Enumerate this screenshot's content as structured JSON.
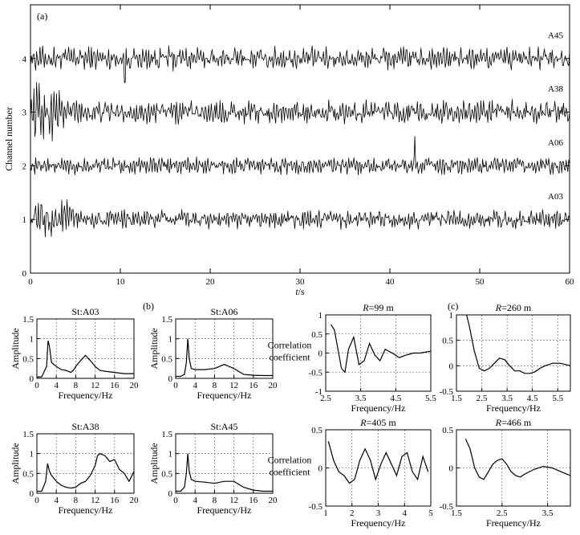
{
  "chart_data": [
    {
      "type": "line",
      "panel_label": "(a)",
      "xlabel_italic": "t",
      "xlabel_rest": "/s",
      "ylabel": "Channel number",
      "xlim": [
        0,
        60
      ],
      "ylim": [
        0,
        5
      ],
      "xticks": [
        "0",
        "10",
        "20",
        "30",
        "40",
        "50",
        "60"
      ],
      "yticks": [
        "0",
        "1",
        "2",
        "3",
        "4"
      ],
      "grid": false,
      "series": [
        {
          "name": "A45",
          "baseline": 4,
          "amplitude": 0.28,
          "burst_time_s": 10,
          "spike_time_s": 10.5,
          "spike_value": -0.45
        },
        {
          "name": "A38",
          "baseline": 3,
          "amplitude": 0.28,
          "burst_time_s": 1.5,
          "burst_value": 0.5
        },
        {
          "name": "A06",
          "baseline": 2,
          "amplitude": 0.2,
          "spike_time_s": 42.8,
          "spike_value": 0.55
        },
        {
          "name": "A03",
          "baseline": 1,
          "amplitude": 0.22,
          "burst_time_s": 3,
          "burst_value": 0.4
        }
      ]
    },
    {
      "type": "line",
      "title": "St:A03",
      "xlabel": "Frequency/Hz",
      "ylabel": "Amplitude",
      "xlim": [
        0,
        20
      ],
      "ylim": [
        0,
        1.5
      ],
      "xticks": [
        "0",
        "4",
        "8",
        "12",
        "16",
        "20"
      ],
      "yticks": [
        "0",
        "0.5",
        "1",
        "1.5"
      ],
      "grid": true,
      "x": [
        0,
        1,
        2,
        2.3,
        2.6,
        3,
        3.5,
        4,
        5,
        6,
        7,
        7.5,
        8,
        9,
        10,
        11,
        12,
        13,
        14,
        16,
        18,
        20
      ],
      "y": [
        0.03,
        0.04,
        0.3,
        0.95,
        0.8,
        0.4,
        0.35,
        0.3,
        0.22,
        0.2,
        0.15,
        0.2,
        0.3,
        0.45,
        0.58,
        0.45,
        0.3,
        0.2,
        0.18,
        0.15,
        0.12,
        0.12
      ]
    },
    {
      "type": "line",
      "title": "St:A06",
      "xlabel": "Frequency/Hz",
      "ylabel": "Amplitude",
      "xlim": [
        0,
        20
      ],
      "ylim": [
        0,
        1.5
      ],
      "xticks": [
        "0",
        "4",
        "8",
        "12",
        "16",
        "20"
      ],
      "yticks": [
        "0",
        "0.5",
        "1",
        "1.5"
      ],
      "grid": true,
      "x": [
        0,
        1,
        1.8,
        2.2,
        2.5,
        2.8,
        3.2,
        4,
        6,
        8,
        9,
        10,
        11,
        12,
        14,
        16,
        18,
        20
      ],
      "y": [
        0.05,
        0.05,
        0.1,
        0.4,
        1.0,
        0.5,
        0.25,
        0.22,
        0.22,
        0.25,
        0.3,
        0.35,
        0.3,
        0.25,
        0.1,
        0.08,
        0.07,
        0.07
      ]
    },
    {
      "type": "line",
      "title": "St:A38",
      "xlabel": "Frequency/Hz",
      "ylabel": "Amplitude",
      "xlim": [
        0,
        20
      ],
      "ylim": [
        0,
        1.5
      ],
      "xticks": [
        "0",
        "4",
        "8",
        "12",
        "16",
        "20"
      ],
      "yticks": [
        "0",
        "0.5",
        "1",
        "1.5"
      ],
      "grid": true,
      "x": [
        0,
        1,
        1.8,
        2.2,
        2.6,
        3,
        4,
        5,
        6,
        7,
        8,
        9,
        10,
        11,
        12,
        12.5,
        13,
        14,
        15,
        16,
        17,
        18,
        19,
        20
      ],
      "y": [
        0.05,
        0.05,
        0.3,
        0.75,
        0.55,
        0.45,
        0.3,
        0.2,
        0.15,
        0.13,
        0.15,
        0.25,
        0.3,
        0.45,
        0.7,
        0.95,
        1.0,
        0.95,
        0.8,
        0.85,
        0.6,
        0.5,
        0.3,
        0.55
      ]
    },
    {
      "type": "line",
      "title": "St:A45",
      "xlabel": "Frequency/Hz",
      "ylabel": "Amplitude",
      "xlim": [
        0,
        20
      ],
      "ylim": [
        0,
        1.5
      ],
      "xticks": [
        "0",
        "4",
        "8",
        "12",
        "16",
        "20"
      ],
      "yticks": [
        "0",
        "0.5",
        "1",
        "1.5"
      ],
      "grid": true,
      "x": [
        0,
        1,
        1.8,
        2.2,
        2.5,
        2.8,
        3.2,
        4,
        6,
        8,
        10,
        12,
        14,
        16,
        18,
        20
      ],
      "y": [
        0.05,
        0.05,
        0.15,
        0.5,
        1.0,
        0.55,
        0.35,
        0.3,
        0.28,
        0.25,
        0.3,
        0.3,
        0.15,
        0.08,
        0.05,
        0.05
      ]
    },
    {
      "type": "line",
      "panel_label": "(b)"
    },
    {
      "type": "line",
      "title_italic": "R",
      "title_rest": "=99 m",
      "xlabel": "Frequency/Hz",
      "ylabel_lines": [
        "Correlation",
        "coefficient"
      ],
      "xlim": [
        2.5,
        5.5
      ],
      "ylim": [
        -1,
        1
      ],
      "xticks": [
        "2.5",
        "3.5",
        "4.5",
        "5.5"
      ],
      "yticks": [
        "-1",
        "-0.5",
        "0",
        "0.5",
        "1"
      ],
      "grid": true,
      "x": [
        2.65,
        2.75,
        2.85,
        2.95,
        3.05,
        3.15,
        3.3,
        3.45,
        3.6,
        3.75,
        3.9,
        4.05,
        4.2,
        4.4,
        4.6,
        4.8,
        5.0,
        5.2,
        5.5
      ],
      "y": [
        0.75,
        0.6,
        0.1,
        -0.4,
        -0.5,
        0.1,
        0.42,
        -0.3,
        -0.2,
        0.25,
        -0.05,
        -0.2,
        0.1,
        0.0,
        -0.12,
        -0.05,
        0.0,
        0.0,
        0.05
      ]
    },
    {
      "type": "line",
      "panel_label": "(c)",
      "title_italic": "R",
      "title_rest": "=260 m",
      "xlabel": "Frequency/Hz",
      "ylabel": "",
      "xlim": [
        1.5,
        6.0
      ],
      "ylim": [
        -0.5,
        1
      ],
      "xticks": [
        "1.5",
        "2.5",
        "3.5",
        "4.5",
        "5.5"
      ],
      "yticks": [
        "-0.5",
        "0",
        "0.5",
        "1"
      ],
      "grid": true,
      "x": [
        1.9,
        2.0,
        2.2,
        2.4,
        2.6,
        2.8,
        3.0,
        3.2,
        3.4,
        3.6,
        3.8,
        4.0,
        4.2,
        4.4,
        4.6,
        4.8,
        5.0,
        5.3,
        5.6,
        6.0
      ],
      "y": [
        1.0,
        0.8,
        0.3,
        -0.05,
        -0.1,
        -0.05,
        0.05,
        0.15,
        0.12,
        0.0,
        -0.1,
        -0.1,
        -0.15,
        -0.15,
        -0.12,
        -0.05,
        0.0,
        0.05,
        0.05,
        0.0
      ]
    },
    {
      "type": "line",
      "title_italic": "R",
      "title_rest": "=405 m",
      "xlabel": "Frequency/Hz",
      "ylabel_lines": [
        "Correlation",
        "coefficient"
      ],
      "xlim": [
        1,
        5
      ],
      "ylim": [
        -0.5,
        0.5
      ],
      "xticks": [
        "1",
        "2",
        "3",
        "4",
        "5"
      ],
      "yticks": [
        "-0.5",
        "0",
        "0.5"
      ],
      "grid": true,
      "x": [
        1.1,
        1.3,
        1.5,
        1.7,
        1.9,
        2.1,
        2.3,
        2.5,
        2.7,
        2.9,
        3.1,
        3.3,
        3.5,
        3.7,
        3.9,
        4.1,
        4.3,
        4.5,
        4.7,
        4.9
      ],
      "y": [
        0.35,
        0.1,
        -0.05,
        -0.1,
        -0.2,
        -0.15,
        0.1,
        0.25,
        0.1,
        -0.15,
        0.05,
        0.2,
        0.05,
        -0.1,
        0.15,
        0.2,
        -0.05,
        -0.15,
        0.15,
        -0.05
      ]
    },
    {
      "type": "line",
      "title_italic": "R",
      "title_rest": "=466 m",
      "xlabel": "Frequency/Hz",
      "ylabel": "",
      "xlim": [
        1.5,
        4
      ],
      "ylim": [
        -0.5,
        0.5
      ],
      "xticks": [
        "1.5",
        "2.5",
        "3.5"
      ],
      "yticks": [
        "-0.5",
        "0",
        "0.5"
      ],
      "grid": true,
      "x": [
        1.7,
        1.8,
        1.9,
        2.0,
        2.1,
        2.2,
        2.3,
        2.4,
        2.5,
        2.6,
        2.7,
        2.8,
        2.9,
        3.0,
        3.2,
        3.4,
        3.6,
        3.8,
        4.0
      ],
      "y": [
        0.38,
        0.25,
        0.0,
        -0.12,
        -0.15,
        -0.05,
        0.05,
        0.1,
        0.12,
        0.05,
        -0.05,
        -0.1,
        -0.12,
        -0.08,
        -0.02,
        0.02,
        0.0,
        -0.05,
        -0.1
      ]
    }
  ]
}
